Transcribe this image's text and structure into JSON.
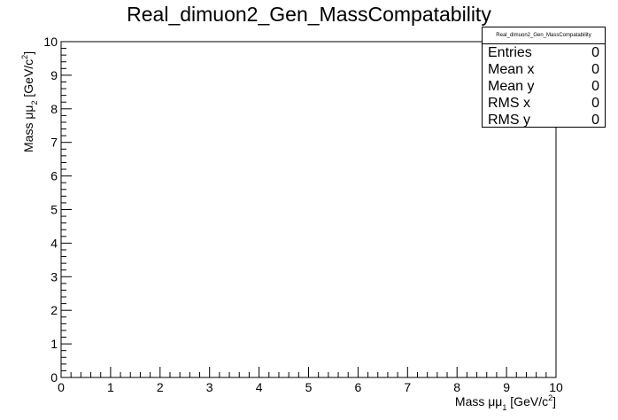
{
  "chart_data": {
    "type": "scatter",
    "title": "Real_dimuon2_Gen_MassCompatability",
    "xlabel_main": "Mass μμ",
    "xlabel_sub": "1",
    "xlabel_unit_pre": " [GeV/c",
    "xlabel_unit_sup": "2",
    "xlabel_unit_post": "]",
    "ylabel_main": "Mass μμ",
    "ylabel_sub": "2",
    "ylabel_unit_pre": " [GeV/c",
    "ylabel_unit_sup": "2",
    "ylabel_unit_post": "]",
    "xlim": [
      0,
      10
    ],
    "ylim": [
      0,
      10
    ],
    "xticks": [
      "0",
      "1",
      "2",
      "3",
      "4",
      "5",
      "6",
      "7",
      "8",
      "9",
      "10"
    ],
    "yticks": [
      "0",
      "1",
      "2",
      "3",
      "4",
      "5",
      "6",
      "7",
      "8",
      "9",
      "10"
    ],
    "points": [],
    "grid": false
  },
  "stats": {
    "title": "Real_dimuon2_Gen_MassCompatability",
    "rows": [
      {
        "label": "Entries",
        "value": "0"
      },
      {
        "label": "Mean x",
        "value": "0"
      },
      {
        "label": "Mean y",
        "value": "0"
      },
      {
        "label": "RMS x",
        "value": "0"
      },
      {
        "label": "RMS y",
        "value": "0"
      }
    ]
  }
}
